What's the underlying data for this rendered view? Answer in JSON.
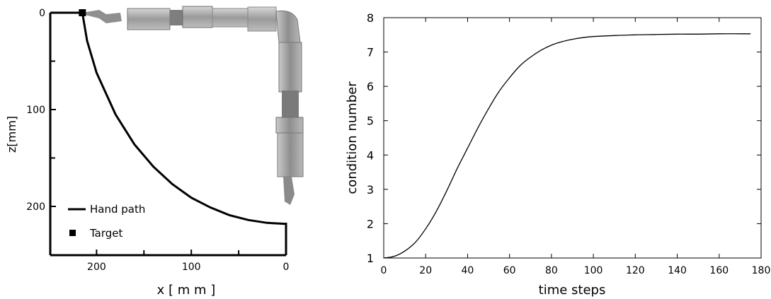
{
  "chart_data": [
    {
      "type": "line",
      "xlabel": "x [ m m ]",
      "ylabel": "z[mm]",
      "x_reversed": true,
      "y_reversed": true,
      "xlim": [
        0,
        250
      ],
      "ylim": [
        0,
        250
      ],
      "x_ticks": [
        {
          "value": 200,
          "label": "200"
        },
        {
          "value": 100,
          "label": "100"
        },
        {
          "value": 0,
          "label": "0"
        }
      ],
      "y_ticks": [
        {
          "value": 0,
          "label": "0"
        },
        {
          "value": 100,
          "label": "100"
        },
        {
          "value": 200,
          "label": "200"
        }
      ],
      "legend": {
        "placement": "bottom-left",
        "entries": [
          {
            "label": "Hand path",
            "marker": "line"
          },
          {
            "label": "Target",
            "marker": "square"
          }
        ]
      },
      "series": [
        {
          "name": "Hand path",
          "x": [
            0,
            20,
            40,
            60,
            80,
            100,
            120,
            140,
            160,
            180,
            200,
            210,
            215
          ],
          "y": [
            218,
            217,
            214,
            209,
            201,
            191,
            177,
            159,
            136,
            105,
            62,
            29,
            0
          ]
        },
        {
          "name": "Target",
          "x": [
            215
          ],
          "y": [
            0
          ]
        }
      ],
      "color": "#000000",
      "background_image": "robot-arm-photo"
    },
    {
      "type": "line",
      "xlabel": "time steps",
      "ylabel": "condition number",
      "xlim": [
        0,
        180
      ],
      "ylim": [
        1,
        8
      ],
      "x_ticks": [
        0,
        20,
        40,
        60,
        80,
        100,
        120,
        140,
        160,
        180
      ],
      "y_ticks": [
        1,
        2,
        3,
        4,
        5,
        6,
        7,
        8
      ],
      "series": [
        {
          "x": [
            0,
            5,
            10,
            15,
            20,
            25,
            30,
            35,
            40,
            45,
            50,
            55,
            60,
            65,
            70,
            75,
            80,
            85,
            90,
            95,
            100,
            110,
            120,
            130,
            140,
            150,
            160,
            170,
            175
          ],
          "y": [
            1.0,
            1.05,
            1.2,
            1.45,
            1.85,
            2.35,
            2.95,
            3.6,
            4.2,
            4.8,
            5.35,
            5.85,
            6.25,
            6.6,
            6.85,
            7.05,
            7.2,
            7.3,
            7.37,
            7.42,
            7.45,
            7.48,
            7.5,
            7.51,
            7.52,
            7.52,
            7.53,
            7.53,
            7.53
          ]
        }
      ],
      "color": "#000000"
    }
  ]
}
